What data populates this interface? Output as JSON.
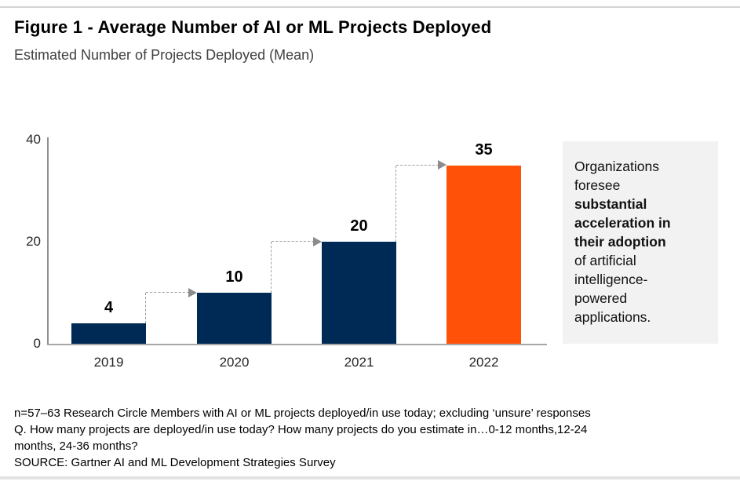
{
  "header": {
    "title": "Figure 1 - Average Number of AI or ML Projects Deployed",
    "subtitle": "Estimated Number of Projects Deployed (Mean)"
  },
  "chart_data": {
    "type": "bar",
    "title": "Figure 1 - Average Number of AI or ML Projects Deployed",
    "subtitle": "Estimated Number of Projects Deployed (Mean)",
    "categories": [
      "2019",
      "2020",
      "2021",
      "2022"
    ],
    "values": [
      4,
      10,
      20,
      35
    ],
    "bar_colors": [
      "#002A56",
      "#002A56",
      "#002A56",
      "#FF5108"
    ],
    "primary_color": "#002A56",
    "highlight_color": "#FF5108",
    "xlabel": "",
    "ylabel": "",
    "ylim": [
      0,
      40
    ],
    "yticks": [
      0,
      20,
      40
    ],
    "grid": false,
    "legend": null,
    "annotations": "dashed gray step arrows connecting each bar top to the next bar top",
    "axis_color": "#8f8f8f",
    "dash_color": "#9e9e9e"
  },
  "side_panel": {
    "background": "#F2F2F2",
    "lines": [
      {
        "text": "Organizations",
        "bold": false
      },
      {
        "text": "foresee",
        "bold": false
      },
      {
        "text": "substantial",
        "bold": true
      },
      {
        "text": "acceleration in",
        "bold": true
      },
      {
        "text": "their adoption",
        "bold": true
      },
      {
        "text": "of artificial",
        "bold": false
      },
      {
        "text": "intelligence-",
        "bold": false
      },
      {
        "text": "powered",
        "bold": false
      },
      {
        "text": "applications.",
        "bold": false
      }
    ]
  },
  "footer": {
    "lines": [
      "n=57–63 Research Circle Members with AI or ML projects deployed/in use today; excluding ‘unsure’ responses",
      "Q. How many projects are deployed/in use today? How many projects do you estimate in…0-12 months,12-24",
      "months, 24-36 months?",
      "SOURCE: Gartner AI and ML Development Strategies Survey"
    ]
  }
}
